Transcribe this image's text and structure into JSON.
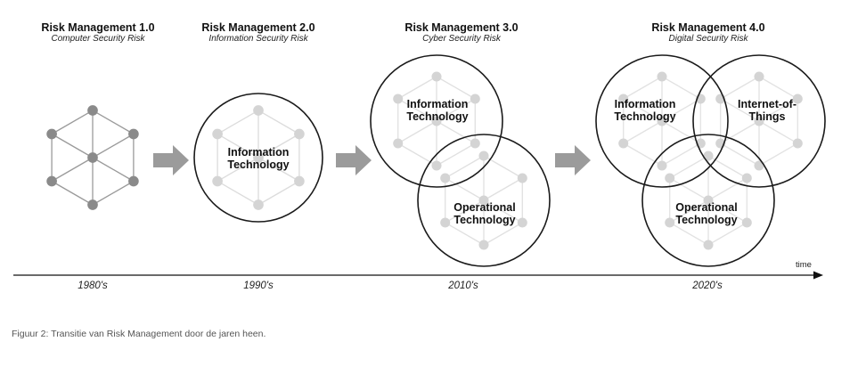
{
  "stages": [
    {
      "title": "Risk Management 1.0",
      "subtitle": "Computer Security Risk",
      "era": "1980's"
    },
    {
      "title": "Risk Management 2.0",
      "subtitle": "Information Security Risk",
      "era": "1990's"
    },
    {
      "title": "Risk Management 3.0",
      "subtitle": "Cyber Security Risk",
      "era": "2010's"
    },
    {
      "title": "Risk Management 4.0",
      "subtitle": "Digital Security Risk",
      "era": "2020's"
    }
  ],
  "circle_labels": {
    "it_2": "Information\nTechnology",
    "it_3": "Information\nTechnology",
    "ot_3": "Operational\nTechnology",
    "it_4": "Information\nTechnology",
    "iot_4": "Internet-of-\nThings",
    "ot_4": "Operational\nTechnology"
  },
  "axis": {
    "label": "time"
  },
  "caption": "Figuur 2: Transitie van Risk Management door de jaren heen.",
  "colors": {
    "node_dark": "#8a8a8a",
    "node_light": "#d4d4d4",
    "arrow": "#9b9b9b",
    "circle": "#1a1a1a"
  }
}
